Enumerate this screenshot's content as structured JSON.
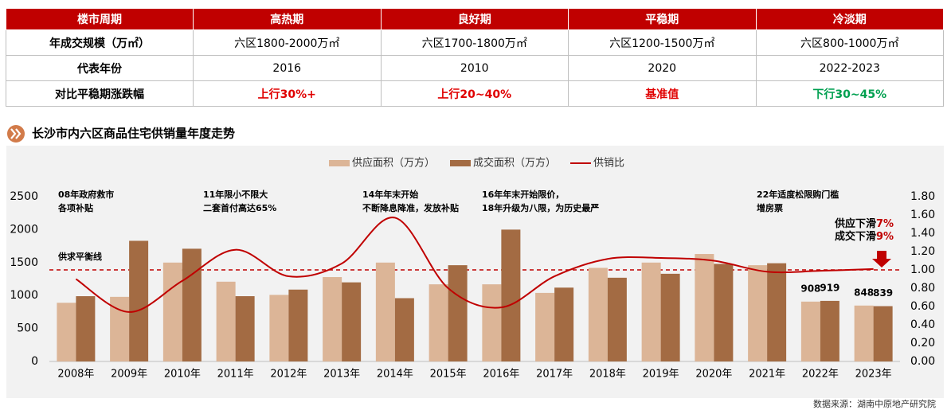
{
  "table": {
    "header": [
      "楼市周期",
      "高热期",
      "良好期",
      "平稳期",
      "冷淡期"
    ],
    "rows": [
      [
        "年成交规模（万㎡）",
        "六区1800-2000万㎡",
        "六区1700-1800万㎡",
        "六区1200-1500万㎡",
        "六区800-1000万㎡"
      ],
      [
        "代表年份",
        "2016",
        "2010",
        "2020",
        "2022-2023"
      ],
      [
        "对比平稳期涨跌幅",
        {
          "text": "上行30%+",
          "color": "#e00000"
        },
        {
          "text": "上行20~40%",
          "color": "#e00000"
        },
        {
          "text": "基准值",
          "color": "#e00000"
        },
        {
          "text": "下行30~45%",
          "color": "#00a050"
        }
      ]
    ]
  },
  "chart_data": {
    "type": "bar-line",
    "title": "长沙市内六区商品住宅供销量年度走势",
    "categories": [
      "2008年",
      "2009年",
      "2010年",
      "2011年",
      "2012年",
      "2013年",
      "2014年",
      "2015年",
      "2016年",
      "2017年",
      "2018年",
      "2019年",
      "2020年",
      "2021年",
      "2022年",
      "2023年"
    ],
    "series": [
      {
        "name": "供应面积（万方）",
        "type": "bar",
        "color": "#dcb597",
        "values": [
          890,
          980,
          1500,
          1210,
          1010,
          1280,
          1500,
          1170,
          1170,
          1040,
          1420,
          1500,
          1630,
          1460,
          908,
          848
        ],
        "value_labels": [
          null,
          null,
          null,
          null,
          null,
          null,
          null,
          null,
          null,
          null,
          null,
          null,
          null,
          null,
          "908",
          "848"
        ]
      },
      {
        "name": "成交面积（万方）",
        "type": "bar",
        "color": "#a36b43",
        "values": [
          990,
          1830,
          1710,
          990,
          1090,
          1200,
          960,
          1460,
          2000,
          1120,
          1270,
          1330,
          1480,
          1490,
          919,
          839
        ],
        "value_labels": [
          null,
          null,
          null,
          null,
          null,
          null,
          null,
          null,
          null,
          null,
          null,
          null,
          null,
          null,
          "919",
          "839"
        ]
      },
      {
        "name": "供销比",
        "type": "line",
        "axis": "y2",
        "color": "#c00000",
        "values": [
          0.9,
          0.54,
          0.88,
          1.22,
          0.93,
          1.07,
          1.57,
          0.8,
          0.59,
          0.93,
          1.12,
          1.13,
          1.1,
          0.98,
          0.99,
          1.01
        ]
      }
    ],
    "ylim": [
      0,
      2500
    ],
    "yticks": [
      0,
      500,
      1000,
      1500,
      2000,
      2500
    ],
    "y2lim": [
      0,
      1.8
    ],
    "y2ticks": [
      {
        "value": 0,
        "label": "0.00"
      },
      {
        "value": 0.2,
        "label": "0.20"
      },
      {
        "value": 0.4,
        "label": "0.40"
      },
      {
        "value": 0.6,
        "label": "0.60"
      },
      {
        "value": 0.8,
        "label": "0.80"
      },
      {
        "value": 1,
        "label": "1.00"
      },
      {
        "value": 1.2,
        "label": "1.20"
      },
      {
        "value": 1.4,
        "label": "1.40"
      },
      {
        "value": 1.6,
        "label": "1.60"
      },
      {
        "value": 1.8,
        "label": "1.80"
      }
    ],
    "reference_line": {
      "value": 1,
      "axis": "y2",
      "label": "供求平衡线",
      "color": "#c00000"
    },
    "annotations": [
      {
        "lines": [
          "08年政府救市",
          "各项补贴"
        ]
      },
      {
        "lines": [
          "11年限小不限大",
          "二套首付高达65%"
        ]
      },
      {
        "lines": [
          "14年年末开始",
          "不断降息降准，发放补贴"
        ]
      },
      {
        "lines": [
          "16年年末开始限价，",
          "18年升级为八限，为历史最严"
        ]
      },
      {
        "lines": [
          "22年适度松限购门槛",
          "增房票"
        ]
      }
    ],
    "callout": [
      {
        "text": "供应下滑",
        "highlight": "7%"
      },
      {
        "text": "成交下滑",
        "highlight": "9%"
      }
    ],
    "source": "数据来源：湖南中原地产研究院"
  }
}
